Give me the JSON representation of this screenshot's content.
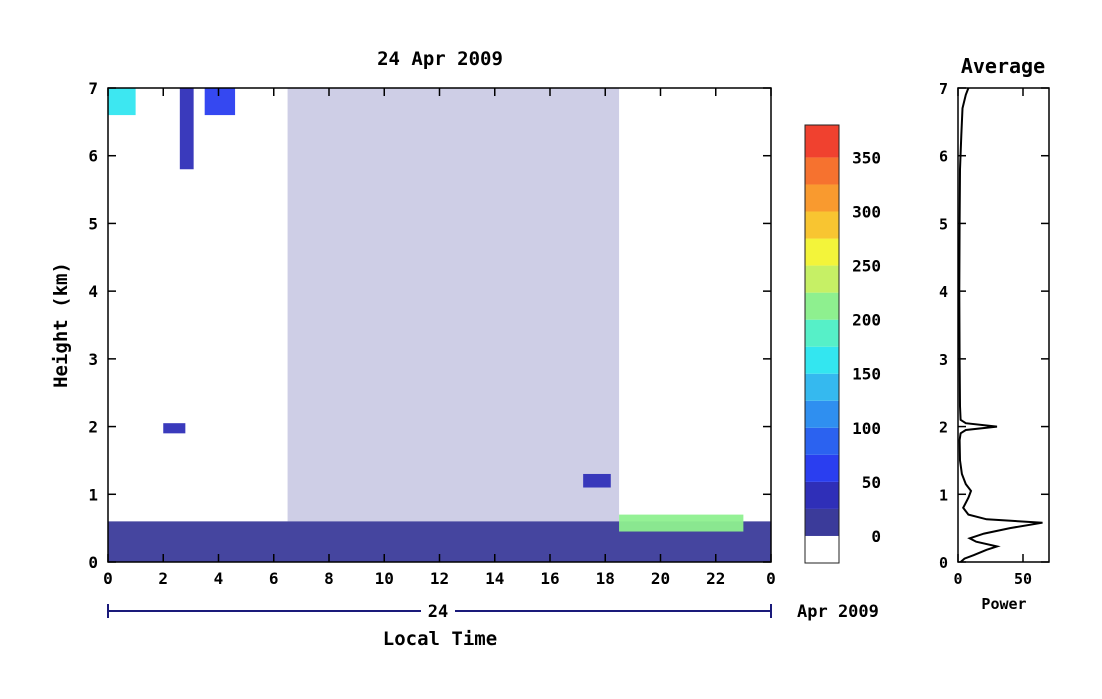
{
  "chart_data": [
    {
      "type": "heatmap",
      "title": "24 Apr 2009",
      "xlabel": "Local Time",
      "ylabel": "Height (km)",
      "xlim": [
        0,
        24
      ],
      "ylim": [
        0,
        7
      ],
      "x_ticks": [
        "0",
        "2",
        "4",
        "6",
        "8",
        "10",
        "12",
        "14",
        "16",
        "18",
        "20",
        "22",
        "0"
      ],
      "y_ticks": [
        "0",
        "1",
        "2",
        "3",
        "4",
        "5",
        "6",
        "7"
      ],
      "date_axis": {
        "day_label": "24",
        "month_label": "Apr 2009"
      },
      "colorbar": {
        "ticks": [
          "0",
          "50",
          "100",
          "150",
          "200",
          "250",
          "300",
          "350"
        ],
        "range": [
          -25,
          380
        ],
        "bins": [
          {
            "from": -25,
            "to": 0,
            "color": "#ffffff"
          },
          {
            "from": 0,
            "to": 25,
            "color": "#3b3b9a"
          },
          {
            "from": 25,
            "to": 50,
            "color": "#2f2fb8"
          },
          {
            "from": 50,
            "to": 75,
            "color": "#2a3ef0"
          },
          {
            "from": 75,
            "to": 100,
            "color": "#2b62f0"
          },
          {
            "from": 100,
            "to": 125,
            "color": "#2f8ff0"
          },
          {
            "from": 125,
            "to": 150,
            "color": "#35b9ef"
          },
          {
            "from": 150,
            "to": 175,
            "color": "#33e6f0"
          },
          {
            "from": 175,
            "to": 200,
            "color": "#56f0c8"
          },
          {
            "from": 200,
            "to": 225,
            "color": "#8ef08f"
          },
          {
            "from": 225,
            "to": 250,
            "color": "#c6f065"
          },
          {
            "from": 250,
            "to": 275,
            "color": "#f3f43a"
          },
          {
            "from": 275,
            "to": 300,
            "color": "#f8c531"
          },
          {
            "from": 300,
            "to": 325,
            "color": "#f99a2f"
          },
          {
            "from": 325,
            "to": 350,
            "color": "#f6722f"
          },
          {
            "from": 350,
            "to": 380,
            "color": "#f0412f"
          }
        ]
      },
      "features": [
        {
          "desc": "near-surface layer",
          "x_range": [
            0,
            24
          ],
          "y_range": [
            0,
            0.6
          ],
          "value": 15
        },
        {
          "desc": "scattered echoes",
          "x_range": [
            6.5,
            18.5
          ],
          "y_range": [
            0.6,
            7
          ],
          "value": 10
        },
        {
          "desc": "elevated layer",
          "x_range": [
            2.0,
            2.8
          ],
          "y_range": [
            1.9,
            2.05
          ],
          "value": 30
        },
        {
          "desc": "elevated layer",
          "x_range": [
            17.2,
            18.2
          ],
          "y_range": [
            1.1,
            1.3
          ],
          "value": 30
        },
        {
          "desc": "high echo patch",
          "x_range": [
            0,
            1.0
          ],
          "y_range": [
            6.6,
            7.0
          ],
          "value": 150
        },
        {
          "desc": "high echo patch",
          "x_range": [
            2.6,
            3.1
          ],
          "y_range": [
            5.8,
            7.0
          ],
          "value": 40
        },
        {
          "desc": "high echo patch",
          "x_range": [
            3.5,
            4.6
          ],
          "y_range": [
            6.6,
            7.0
          ],
          "value": 60
        },
        {
          "desc": "enhanced layer",
          "x_range": [
            18.5,
            23.0
          ],
          "y_range": [
            0.45,
            0.7
          ],
          "value": 200
        }
      ]
    },
    {
      "type": "line",
      "title": "Average",
      "xlabel": "Power",
      "xlim": [
        0,
        70
      ],
      "ylim": [
        0,
        7
      ],
      "x_ticks": [
        "0",
        "50"
      ],
      "y_ticks": [
        "0",
        "1",
        "2",
        "3",
        "4",
        "5",
        "6",
        "7"
      ],
      "series": [
        {
          "points": [
            [
              2,
              0.0
            ],
            [
              5,
              0.05
            ],
            [
              12,
              0.1
            ],
            [
              22,
              0.18
            ],
            [
              30,
              0.23
            ],
            [
              14,
              0.3
            ],
            [
              9,
              0.35
            ],
            [
              20,
              0.42
            ],
            [
              40,
              0.5
            ],
            [
              65,
              0.58
            ],
            [
              22,
              0.63
            ],
            [
              8,
              0.7
            ],
            [
              4,
              0.8
            ],
            [
              8,
              0.95
            ],
            [
              10,
              1.05
            ],
            [
              6,
              1.15
            ],
            [
              3,
              1.3
            ],
            [
              1.5,
              1.5
            ],
            [
              1.2,
              1.8
            ],
            [
              2,
              1.9
            ],
            [
              6,
              1.95
            ],
            [
              30,
              2.0
            ],
            [
              6,
              2.05
            ],
            [
              2,
              2.1
            ],
            [
              1.5,
              2.3
            ],
            [
              1.2,
              3.0
            ],
            [
              1.0,
              4.0
            ],
            [
              1.2,
              5.0
            ],
            [
              1.5,
              5.8
            ],
            [
              2.5,
              6.3
            ],
            [
              3.5,
              6.7
            ],
            [
              6,
              6.9
            ],
            [
              8,
              7.0
            ]
          ]
        }
      ]
    }
  ]
}
